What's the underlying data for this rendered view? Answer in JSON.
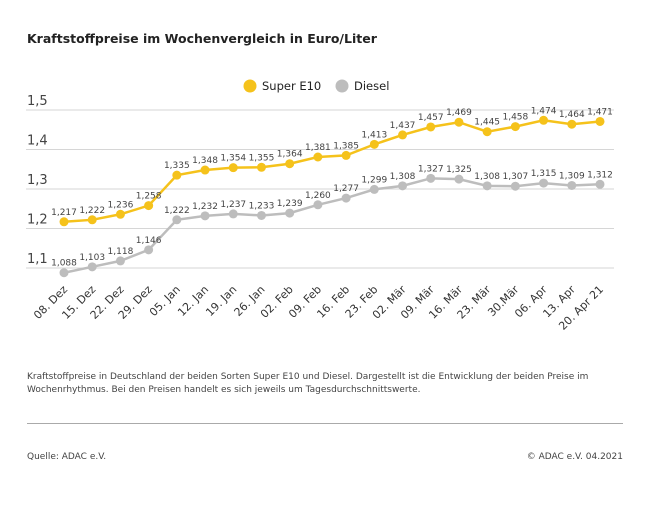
{
  "chart_data": {
    "type": "line",
    "title": "Kraftstoffpreise im Wochenvergleich in Euro/Liter",
    "categories": [
      "08. Dez",
      "15. Dez",
      "22. Dez",
      "29. Dez",
      "05. Jan",
      "12. Jan",
      "19. Jan",
      "26. Jan",
      "02. Feb",
      "09. Feb",
      "16. Feb",
      "23. Feb",
      "02. Mär",
      "09. Mär",
      "16. Mär",
      "23. Mär",
      "30.Mär",
      "06. Apr",
      "13. Apr",
      "20. Apr 21"
    ],
    "series": [
      {
        "name": "Super E10",
        "color": "#f5c21b",
        "values": [
          1.217,
          1.222,
          1.236,
          1.258,
          1.335,
          1.348,
          1.354,
          1.355,
          1.364,
          1.381,
          1.385,
          1.413,
          1.437,
          1.457,
          1.469,
          1.445,
          1.458,
          1.474,
          1.464,
          1.471
        ]
      },
      {
        "name": "Diesel",
        "color": "#bdbdbd",
        "values": [
          1.088,
          1.103,
          1.118,
          1.146,
          1.222,
          1.232,
          1.237,
          1.233,
          1.239,
          1.26,
          1.277,
          1.299,
          1.308,
          1.327,
          1.325,
          1.308,
          1.307,
          1.315,
          1.309,
          1.312
        ]
      }
    ],
    "yticks": [
      "1,1",
      "1,2",
      "1,3",
      "1,4",
      "1,5"
    ],
    "ytick_values": [
      1.1,
      1.2,
      1.3,
      1.4,
      1.5
    ],
    "ylim": [
      1.05,
      1.5
    ],
    "legend": "top-center",
    "grid": true
  },
  "note": "Kraftstoffpreise in Deutschland der beiden Sorten Super E10 und Diesel. Dargestellt ist die Entwicklung der beiden Preise im Wochenrhythmus. Bei den Preisen handelt es sich jeweils um Tagesdurchschnittswerte.",
  "source": "Quelle: ADAC e.V.",
  "copyright": "© ADAC e.V. 04.2021"
}
